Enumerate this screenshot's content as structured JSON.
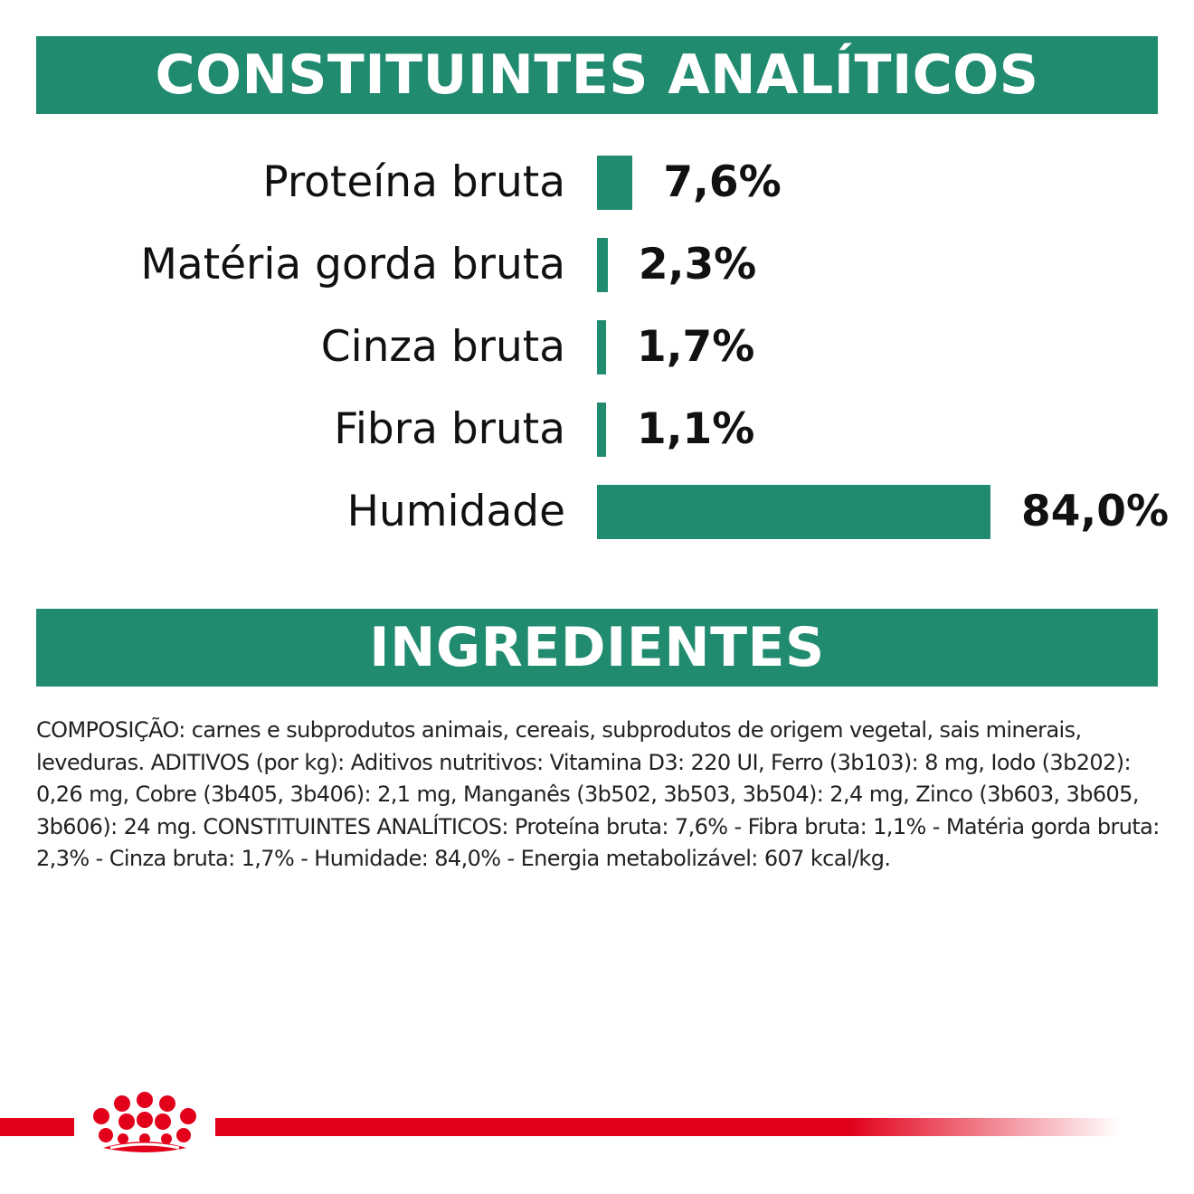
{
  "sections": {
    "analytical_title": "CONSTITUINTES ANALÍTICOS",
    "ingredients_title": "INGREDIENTES"
  },
  "chart_data": {
    "type": "bar",
    "orientation": "horizontal",
    "categories": [
      "Proteína bruta",
      "Matéria gorda bruta",
      "Cinza bruta",
      "Fibra bruta",
      "Humidade"
    ],
    "values": [
      7.6,
      2.3,
      1.7,
      1.1,
      84.0
    ],
    "value_labels": [
      "7,6%",
      "2,3%",
      "1,7%",
      "1,1%",
      "84,0%"
    ],
    "title": "",
    "xlabel": "",
    "ylabel": "",
    "xlim": [
      0,
      84.0
    ],
    "grid": false,
    "legend": "none",
    "bar_color": "#218b70"
  },
  "ingredients_text": "COMPOSIÇÃO: carnes e subprodutos animais, cereais, subprodutos de origem vegetal, sais minerais, leveduras. ADITIVOS (por kg): Aditivos nutritivos: Vitamina D3: 220 UI, Ferro (3b103): 8 mg, Iodo (3b202): 0,26 mg, Cobre (3b405, 3b406): 2,1 mg, Manganês (3b502, 3b503, 3b504): 2,4 mg, Zinco (3b603, 3b605, 3b606): 24 mg. CONSTITUINTES ANALÍTICOS: Proteína bruta: 7,6% - Fibra bruta: 1,1% - Matéria gorda bruta: 2,3% - Cinza bruta: 1,7% - Humidade: 84,0% - Energia metabolizável: 607 kcal/kg.",
  "colors": {
    "accent": "#218b70",
    "brand_red": "#e2001a"
  },
  "icons": {
    "logo": "royal-crown-icon"
  }
}
